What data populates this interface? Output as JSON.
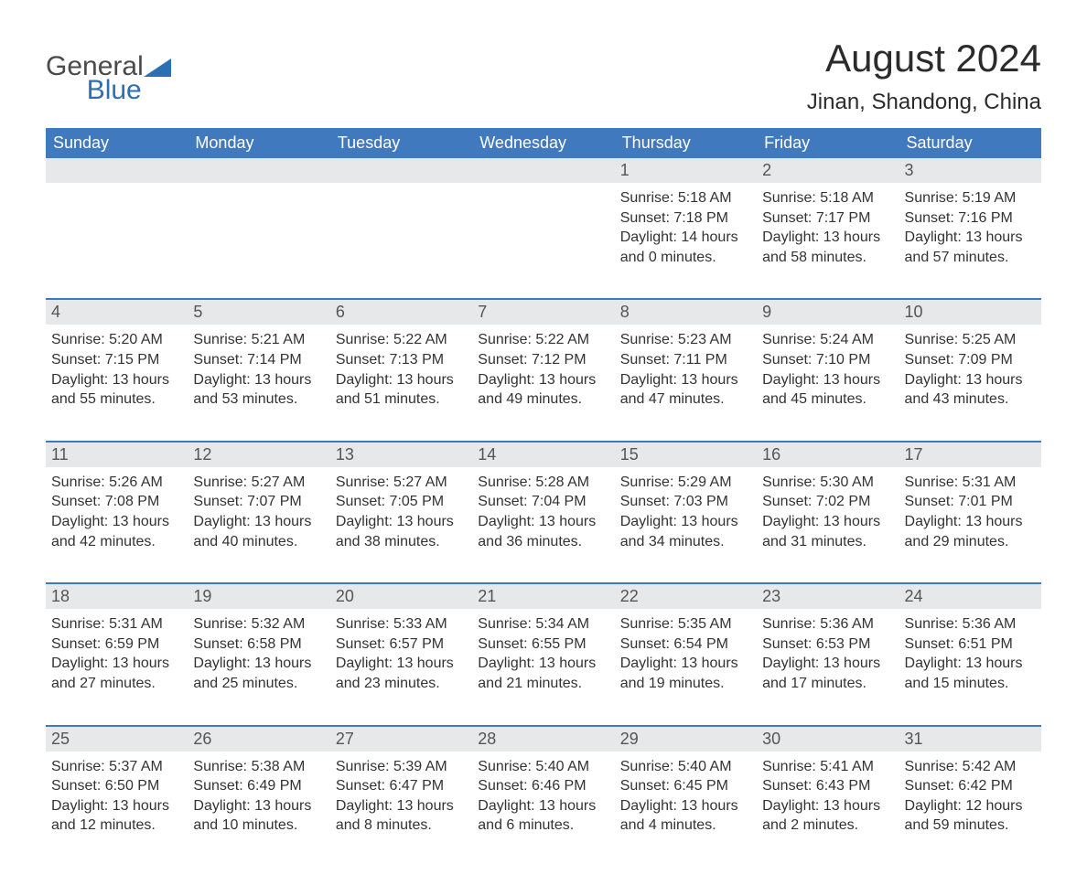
{
  "colors": {
    "header_bg": "#4179bf",
    "header_text": "#ffffff",
    "daynum_bg": "#e7e8ea",
    "daynum_text": "#555555",
    "body_text": "#333333",
    "week_divider": "#4179bf",
    "logo_general": "#4a4a4a",
    "logo_blue": "#2d6fb3",
    "title_color": "#2b2b2b",
    "page_bg": "#ffffff"
  },
  "typography": {
    "font_family": "Arial, Helvetica, sans-serif",
    "month_title_pt": 42,
    "location_pt": 24,
    "weekday_pt": 18,
    "daynum_pt": 18,
    "body_pt": 16
  },
  "logo": {
    "general": "General",
    "blue": "Blue"
  },
  "title": "August 2024",
  "location": "Jinan, Shandong, China",
  "weekdays": [
    "Sunday",
    "Monday",
    "Tuesday",
    "Wednesday",
    "Thursday",
    "Friday",
    "Saturday"
  ],
  "labels": {
    "sunrise": "Sunrise:",
    "sunset": "Sunset:",
    "daylight": "Daylight:"
  },
  "weeks": [
    [
      null,
      null,
      null,
      null,
      {
        "n": "1",
        "sunrise": "5:18 AM",
        "sunset": "7:18 PM",
        "dl1": "14 hours",
        "dl2": "and 0 minutes."
      },
      {
        "n": "2",
        "sunrise": "5:18 AM",
        "sunset": "7:17 PM",
        "dl1": "13 hours",
        "dl2": "and 58 minutes."
      },
      {
        "n": "3",
        "sunrise": "5:19 AM",
        "sunset": "7:16 PM",
        "dl1": "13 hours",
        "dl2": "and 57 minutes."
      }
    ],
    [
      {
        "n": "4",
        "sunrise": "5:20 AM",
        "sunset": "7:15 PM",
        "dl1": "13 hours",
        "dl2": "and 55 minutes."
      },
      {
        "n": "5",
        "sunrise": "5:21 AM",
        "sunset": "7:14 PM",
        "dl1": "13 hours",
        "dl2": "and 53 minutes."
      },
      {
        "n": "6",
        "sunrise": "5:22 AM",
        "sunset": "7:13 PM",
        "dl1": "13 hours",
        "dl2": "and 51 minutes."
      },
      {
        "n": "7",
        "sunrise": "5:22 AM",
        "sunset": "7:12 PM",
        "dl1": "13 hours",
        "dl2": "and 49 minutes."
      },
      {
        "n": "8",
        "sunrise": "5:23 AM",
        "sunset": "7:11 PM",
        "dl1": "13 hours",
        "dl2": "and 47 minutes."
      },
      {
        "n": "9",
        "sunrise": "5:24 AM",
        "sunset": "7:10 PM",
        "dl1": "13 hours",
        "dl2": "and 45 minutes."
      },
      {
        "n": "10",
        "sunrise": "5:25 AM",
        "sunset": "7:09 PM",
        "dl1": "13 hours",
        "dl2": "and 43 minutes."
      }
    ],
    [
      {
        "n": "11",
        "sunrise": "5:26 AM",
        "sunset": "7:08 PM",
        "dl1": "13 hours",
        "dl2": "and 42 minutes."
      },
      {
        "n": "12",
        "sunrise": "5:27 AM",
        "sunset": "7:07 PM",
        "dl1": "13 hours",
        "dl2": "and 40 minutes."
      },
      {
        "n": "13",
        "sunrise": "5:27 AM",
        "sunset": "7:05 PM",
        "dl1": "13 hours",
        "dl2": "and 38 minutes."
      },
      {
        "n": "14",
        "sunrise": "5:28 AM",
        "sunset": "7:04 PM",
        "dl1": "13 hours",
        "dl2": "and 36 minutes."
      },
      {
        "n": "15",
        "sunrise": "5:29 AM",
        "sunset": "7:03 PM",
        "dl1": "13 hours",
        "dl2": "and 34 minutes."
      },
      {
        "n": "16",
        "sunrise": "5:30 AM",
        "sunset": "7:02 PM",
        "dl1": "13 hours",
        "dl2": "and 31 minutes."
      },
      {
        "n": "17",
        "sunrise": "5:31 AM",
        "sunset": "7:01 PM",
        "dl1": "13 hours",
        "dl2": "and 29 minutes."
      }
    ],
    [
      {
        "n": "18",
        "sunrise": "5:31 AM",
        "sunset": "6:59 PM",
        "dl1": "13 hours",
        "dl2": "and 27 minutes."
      },
      {
        "n": "19",
        "sunrise": "5:32 AM",
        "sunset": "6:58 PM",
        "dl1": "13 hours",
        "dl2": "and 25 minutes."
      },
      {
        "n": "20",
        "sunrise": "5:33 AM",
        "sunset": "6:57 PM",
        "dl1": "13 hours",
        "dl2": "and 23 minutes."
      },
      {
        "n": "21",
        "sunrise": "5:34 AM",
        "sunset": "6:55 PM",
        "dl1": "13 hours",
        "dl2": "and 21 minutes."
      },
      {
        "n": "22",
        "sunrise": "5:35 AM",
        "sunset": "6:54 PM",
        "dl1": "13 hours",
        "dl2": "and 19 minutes."
      },
      {
        "n": "23",
        "sunrise": "5:36 AM",
        "sunset": "6:53 PM",
        "dl1": "13 hours",
        "dl2": "and 17 minutes."
      },
      {
        "n": "24",
        "sunrise": "5:36 AM",
        "sunset": "6:51 PM",
        "dl1": "13 hours",
        "dl2": "and 15 minutes."
      }
    ],
    [
      {
        "n": "25",
        "sunrise": "5:37 AM",
        "sunset": "6:50 PM",
        "dl1": "13 hours",
        "dl2": "and 12 minutes."
      },
      {
        "n": "26",
        "sunrise": "5:38 AM",
        "sunset": "6:49 PM",
        "dl1": "13 hours",
        "dl2": "and 10 minutes."
      },
      {
        "n": "27",
        "sunrise": "5:39 AM",
        "sunset": "6:47 PM",
        "dl1": "13 hours",
        "dl2": "and 8 minutes."
      },
      {
        "n": "28",
        "sunrise": "5:40 AM",
        "sunset": "6:46 PM",
        "dl1": "13 hours",
        "dl2": "and 6 minutes."
      },
      {
        "n": "29",
        "sunrise": "5:40 AM",
        "sunset": "6:45 PM",
        "dl1": "13 hours",
        "dl2": "and 4 minutes."
      },
      {
        "n": "30",
        "sunrise": "5:41 AM",
        "sunset": "6:43 PM",
        "dl1": "13 hours",
        "dl2": "and 2 minutes."
      },
      {
        "n": "31",
        "sunrise": "5:42 AM",
        "sunset": "6:42 PM",
        "dl1": "12 hours",
        "dl2": "and 59 minutes."
      }
    ]
  ]
}
